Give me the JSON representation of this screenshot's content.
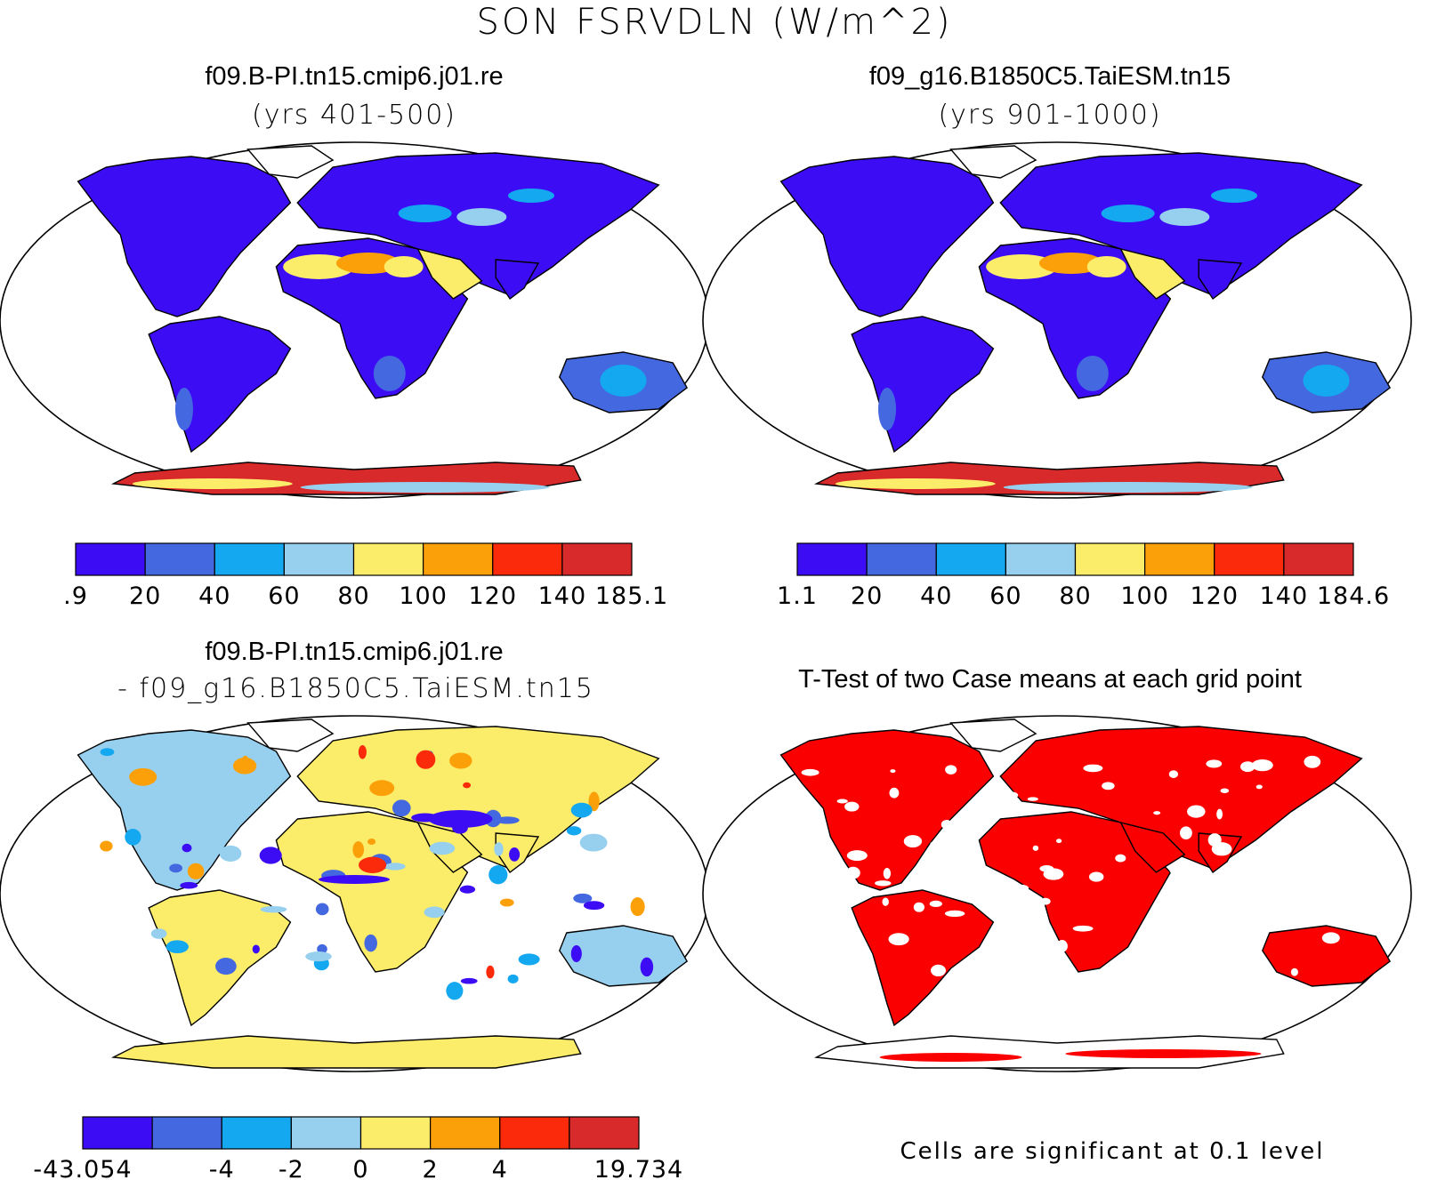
{
  "title": "SON FSRVDLN (W/m^2)",
  "panels": [
    {
      "name": "case1",
      "title": "f09.B-PI.tn15.cmip6.j01.re",
      "subtitle": "(yrs 401-500)",
      "colorbar": {
        "colors": [
          "#3c0cf5",
          "#4468e0",
          "#14a8f0",
          "#96d0ee",
          "#fbec6a",
          "#fca00a",
          "#fa2a0a",
          "#d82a2a"
        ],
        "labels": [
          ".9",
          "20",
          "40",
          "60",
          "80",
          "100",
          "120",
          "140",
          "185.1"
        ]
      }
    },
    {
      "name": "case2",
      "title": "f09_g16.B1850C5.TaiESM.tn15",
      "subtitle": "(yrs 901-1000)",
      "colorbar": {
        "colors": [
          "#3c0cf5",
          "#4468e0",
          "#14a8f0",
          "#96d0ee",
          "#fbec6a",
          "#fca00a",
          "#fa2a0a",
          "#d82a2a"
        ],
        "labels": [
          "1.1",
          "20",
          "40",
          "60",
          "80",
          "100",
          "120",
          "140",
          "184.6"
        ]
      }
    },
    {
      "name": "difference",
      "title": "f09.B-PI.tn15.cmip6.j01.re",
      "subtitle": "- f09_g16.B1850C5.TaiESM.tn15",
      "colorbar": {
        "colors": [
          "#3c0cf5",
          "#4468e0",
          "#14a8f0",
          "#96d0ee",
          "#fbec6a",
          "#fca00a",
          "#fa2a0a",
          "#d82a2a"
        ],
        "labels": [
          "-43.054",
          "",
          "-4",
          "-2",
          "0",
          "2",
          "4",
          "",
          "19.734"
        ]
      }
    },
    {
      "name": "ttest",
      "title": "T-Test of two Case means at each grid point",
      "note": "Cells are significant at 0.1 level",
      "color": "#fa0000"
    }
  ]
}
